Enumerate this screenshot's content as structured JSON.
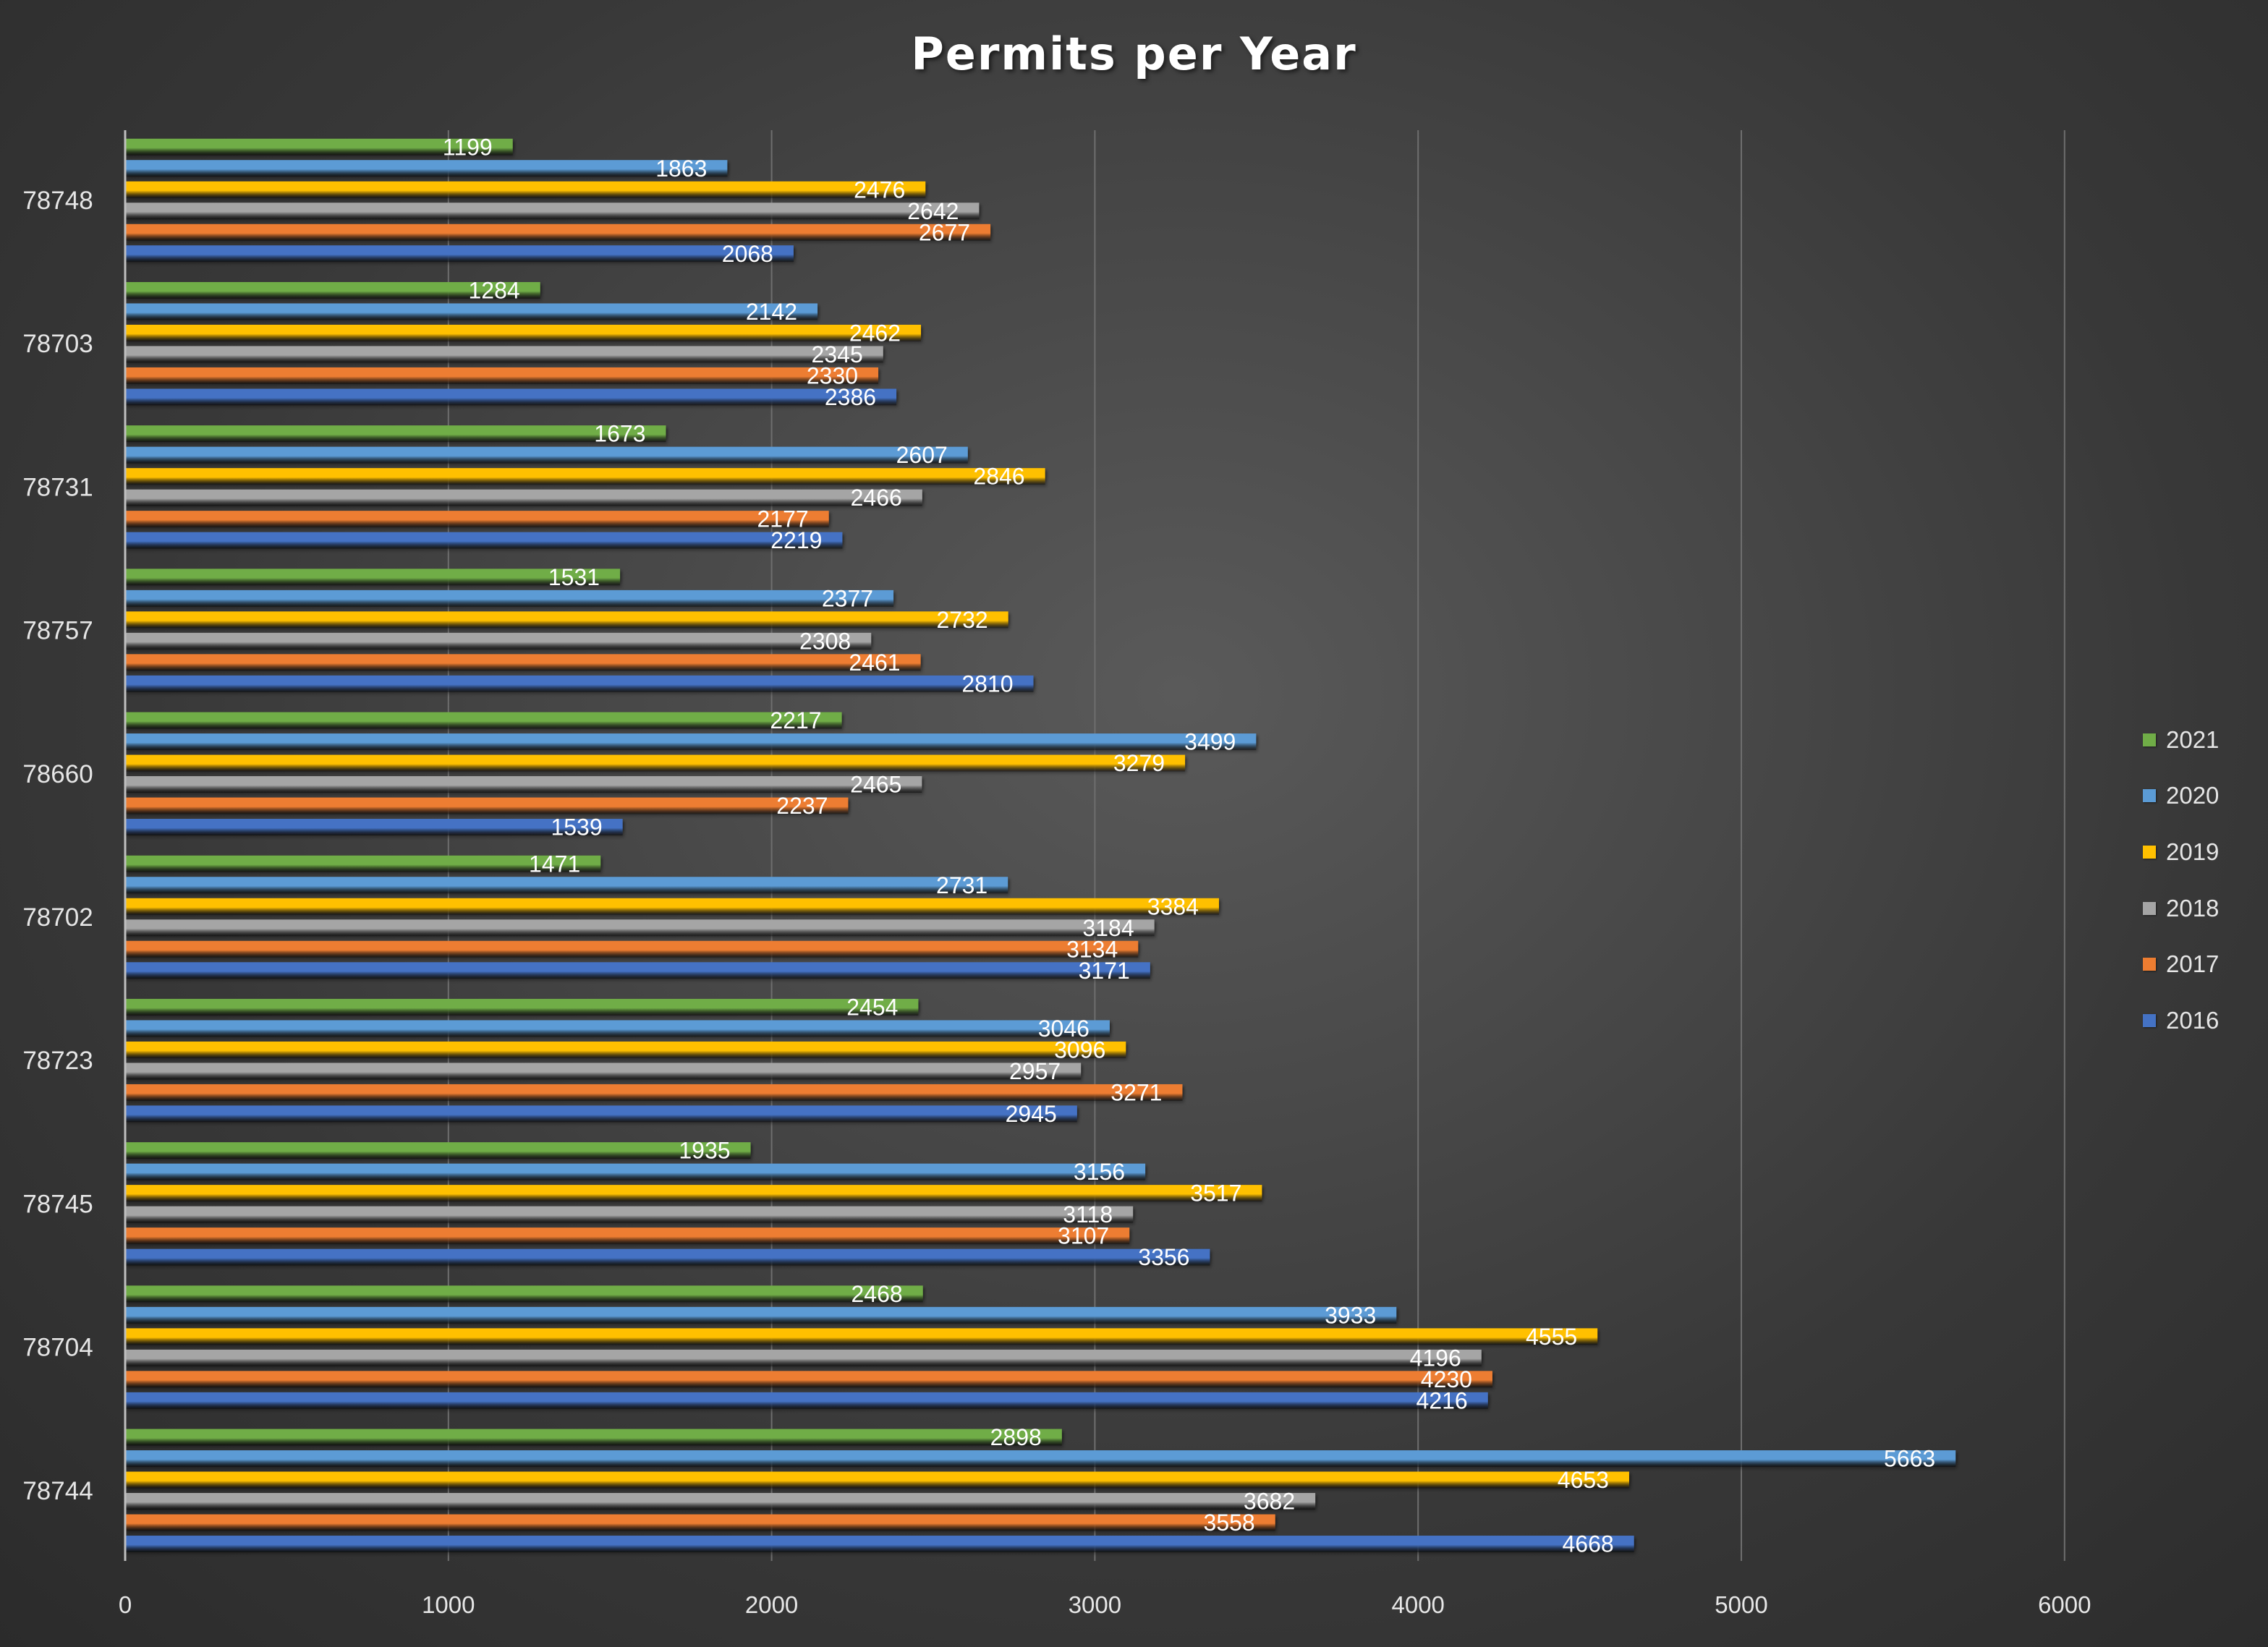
{
  "chart_data": {
    "type": "bar",
    "orientation": "horizontal",
    "title": "Permits per Year",
    "xlabel": "",
    "ylabel": "",
    "xlim": [
      0,
      6000
    ],
    "x_ticks": [
      0,
      1000,
      2000,
      3000,
      4000,
      5000,
      6000
    ],
    "grid": "vertical",
    "legend_position": "right",
    "data_labels": true,
    "categories": [
      "78748",
      "78703",
      "78731",
      "78757",
      "78660",
      "78702",
      "78723",
      "78745",
      "78704",
      "78744"
    ],
    "series": [
      {
        "name": "2021",
        "color": "#70ad47",
        "values": [
          1199,
          1284,
          1673,
          1531,
          2217,
          1471,
          2454,
          1935,
          2468,
          2898
        ]
      },
      {
        "name": "2020",
        "color": "#5b9bd5",
        "values": [
          1863,
          2142,
          2607,
          2377,
          3499,
          2731,
          3046,
          3156,
          3933,
          5663
        ]
      },
      {
        "name": "2019",
        "color": "#ffc000",
        "values": [
          2476,
          2462,
          2846,
          2732,
          3279,
          3384,
          3096,
          3517,
          4555,
          4653
        ]
      },
      {
        "name": "2018",
        "color": "#a5a5a5",
        "values": [
          2642,
          2345,
          2466,
          2308,
          2465,
          3184,
          2957,
          3118,
          4196,
          3682
        ]
      },
      {
        "name": "2017",
        "color": "#ed7d31",
        "values": [
          2677,
          2330,
          2177,
          2461,
          2237,
          3134,
          3271,
          3107,
          4230,
          3558
        ]
      },
      {
        "name": "2016",
        "color": "#4472c4",
        "values": [
          2068,
          2386,
          2219,
          2810,
          1539,
          3171,
          2945,
          3356,
          4216,
          4668
        ]
      }
    ]
  }
}
